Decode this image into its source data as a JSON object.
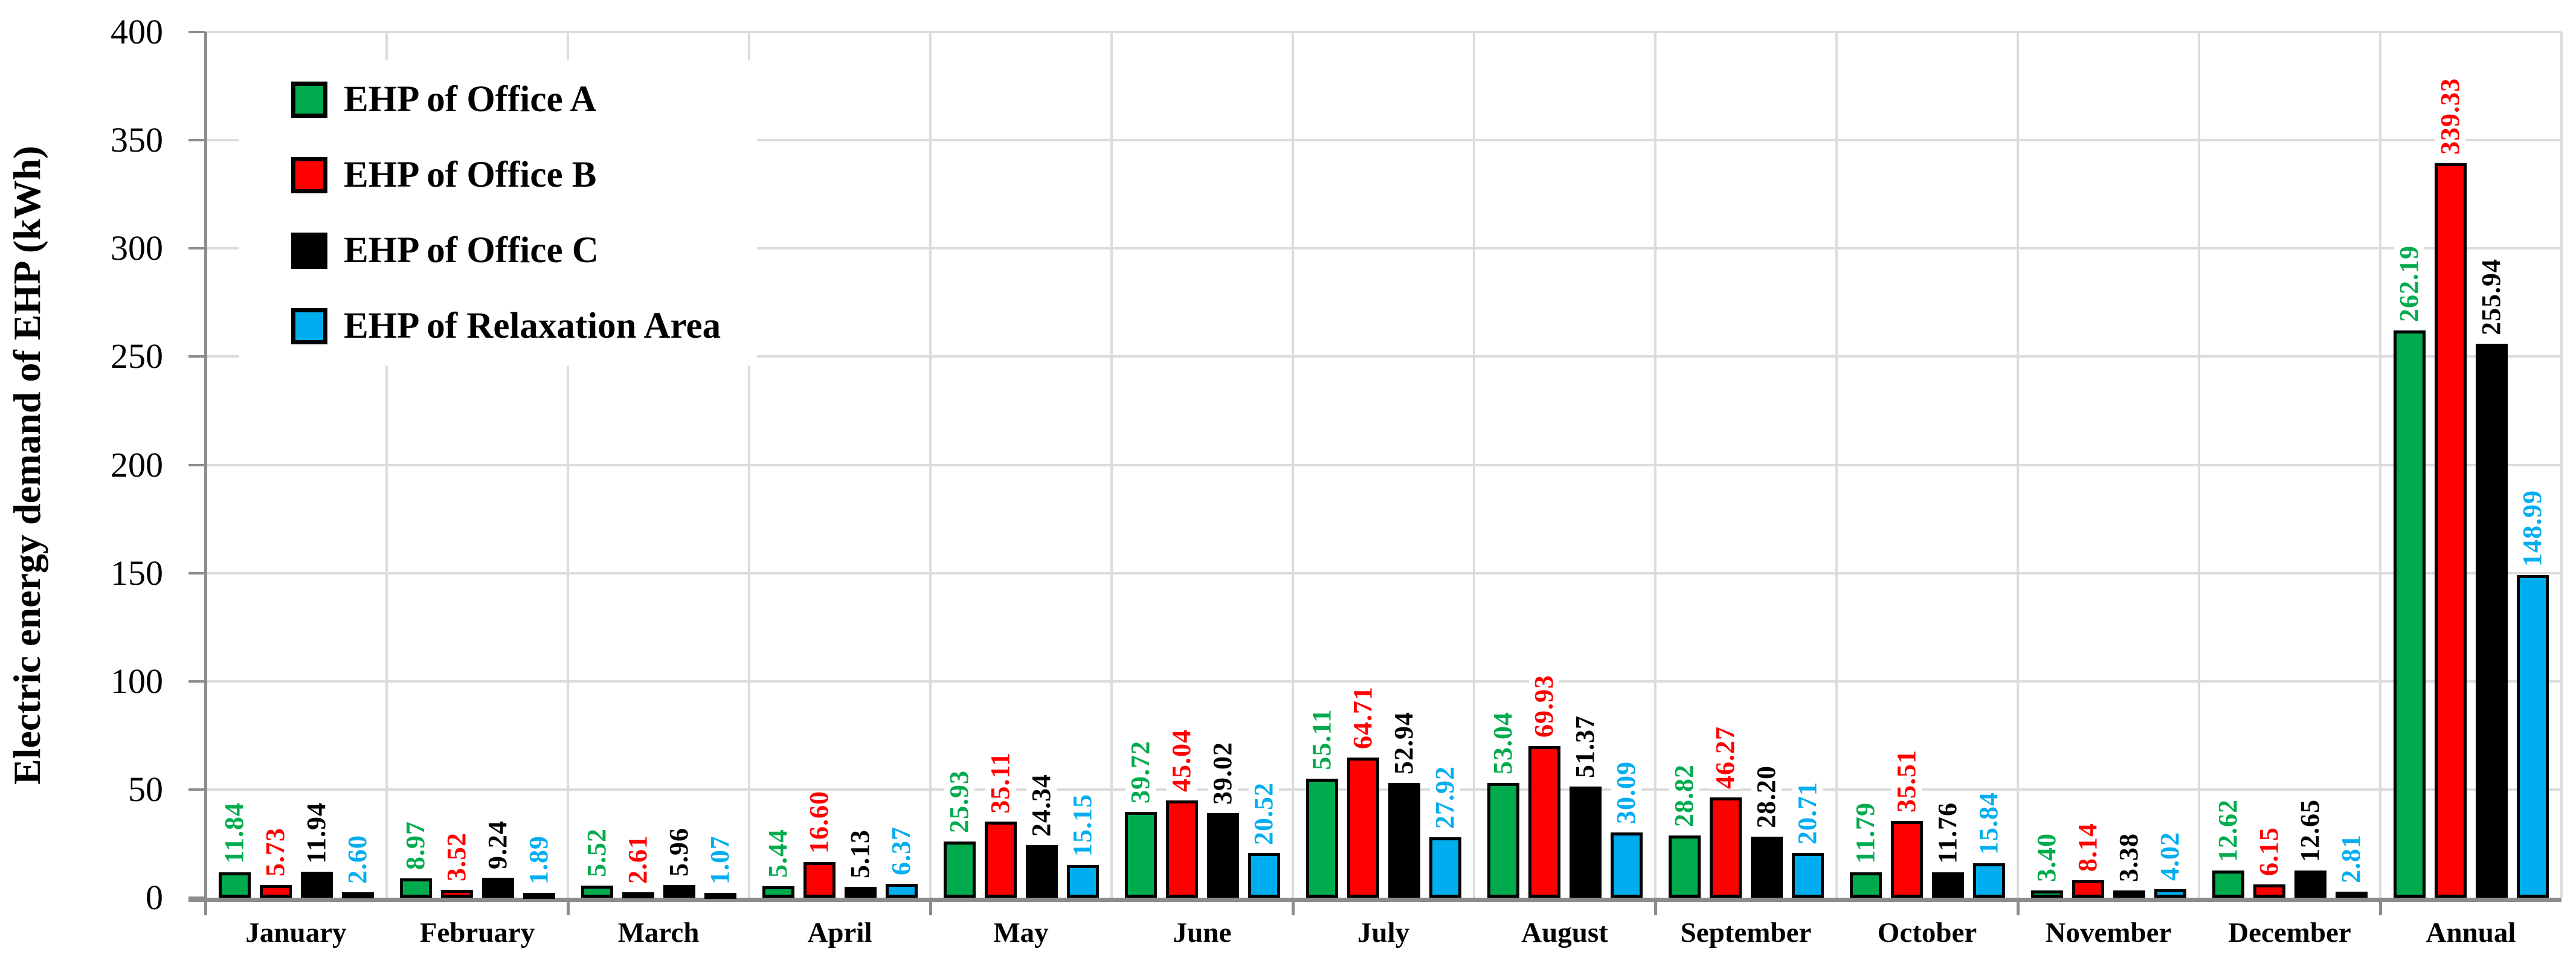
{
  "chart_data": {
    "type": "bar",
    "title": "",
    "xlabel": "",
    "ylabel": "Electric energy demand of EHP (kWh)",
    "ylim": [
      0,
      400
    ],
    "ytick_step": 50,
    "yticks": [
      0,
      50,
      100,
      150,
      200,
      250,
      300,
      350,
      400
    ],
    "grid": true,
    "legend_position": "upper-left-inside",
    "value_label_decimals": 2,
    "value_labels_rotated": true,
    "categories": [
      "January",
      "February",
      "March",
      "April",
      "May",
      "June",
      "July",
      "August",
      "September",
      "October",
      "November",
      "December",
      "Annual"
    ],
    "series": [
      {
        "name": "EHP of Office A",
        "color": "#00AB4E",
        "values": [
          11.84,
          8.97,
          5.52,
          5.44,
          25.93,
          39.72,
          55.11,
          53.04,
          28.82,
          11.79,
          3.4,
          12.62,
          262.19
        ]
      },
      {
        "name": "EHP of Office B",
        "color": "#FE0000",
        "values": [
          5.73,
          3.52,
          2.61,
          16.6,
          35.11,
          45.04,
          64.71,
          69.93,
          46.27,
          35.51,
          8.14,
          6.15,
          339.33
        ]
      },
      {
        "name": "EHP of Office C",
        "color": "#000000",
        "values": [
          11.94,
          9.24,
          5.96,
          5.13,
          24.34,
          39.02,
          52.94,
          51.37,
          28.2,
          11.76,
          3.38,
          12.65,
          255.94
        ]
      },
      {
        "name": "EHP of Relaxation Area",
        "color": "#00AEF0",
        "values": [
          2.6,
          1.89,
          1.07,
          6.37,
          15.15,
          20.52,
          27.92,
          30.09,
          20.71,
          15.84,
          4.02,
          2.81,
          148.99
        ]
      }
    ]
  }
}
